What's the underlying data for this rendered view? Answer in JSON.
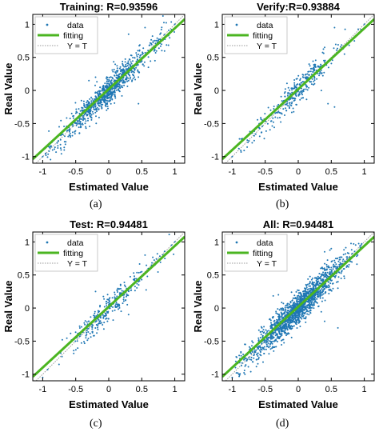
{
  "colors": {
    "data": "#1f77b4",
    "fitting": "#4bb521",
    "reference": "#999999",
    "frame": "#000000"
  },
  "legend": {
    "data": "data",
    "fitting": "fitting",
    "reference": "Y = T"
  },
  "panel_labels": [
    "(a)",
    "(b)",
    "(c)",
    "(d)"
  ],
  "chart_data": [
    {
      "type": "scatter",
      "title": "Training: R=0.93596",
      "xlabel": "Estimated Value",
      "ylabel": "Real Value",
      "xlim": [
        -1.15,
        1.15
      ],
      "ylim": [
        -1.1,
        1.15
      ],
      "xticks": [
        -1,
        -0.5,
        0,
        0.5,
        1
      ],
      "xtick_labels": [
        "-1",
        "-0.5",
        "0",
        "0.5",
        "1"
      ],
      "yticks": [
        -1,
        -0.5,
        0,
        0.5,
        1
      ],
      "ytick_labels": [
        "-1",
        "-0.5",
        "0",
        "0.5",
        "1"
      ],
      "legend_position": "top-left",
      "fit_line": {
        "slope": 0.92,
        "intercept": 0.02
      },
      "cloud": {
        "n": 900,
        "spread": 0.1,
        "core_sd": 0.28,
        "seed": 11
      },
      "points": [
        [
          -1.0,
          -1.0
        ],
        [
          -0.95,
          -0.98
        ],
        [
          -0.9,
          -0.8
        ],
        [
          -0.85,
          -0.9
        ],
        [
          -0.75,
          -0.55
        ],
        [
          -0.62,
          -0.6
        ],
        [
          -0.4,
          -0.5
        ],
        [
          -0.35,
          -0.55
        ],
        [
          0.3,
          0.85
        ],
        [
          0.55,
          0.95
        ],
        [
          0.6,
          0.35
        ],
        [
          0.7,
          0.45
        ],
        [
          0.8,
          0.7
        ],
        [
          0.95,
          0.92
        ],
        [
          1.0,
          1.0
        ],
        [
          0.9,
          0.85
        ],
        [
          -0.2,
          0.2
        ],
        [
          -0.3,
          0.15
        ],
        [
          0.45,
          -0.2
        ]
      ]
    },
    {
      "type": "scatter",
      "title": "Verify:R=0.93884",
      "xlabel": "Estimated Value",
      "ylabel": "Real Value",
      "xlim": [
        -1.15,
        1.15
      ],
      "ylim": [
        -1.1,
        1.15
      ],
      "xticks": [
        -1,
        -0.5,
        0,
        0.5,
        1
      ],
      "xtick_labels": [
        "-1",
        "-0.5",
        "0",
        "0.5",
        "1"
      ],
      "yticks": [
        -1,
        -0.5,
        0,
        0.5,
        1
      ],
      "ytick_labels": [
        "-1",
        "-0.5",
        "0",
        "0.5",
        "1"
      ],
      "legend_position": "top-left",
      "fit_line": {
        "slope": 0.92,
        "intercept": 0.02
      },
      "cloud": {
        "n": 320,
        "spread": 0.1,
        "core_sd": 0.28,
        "seed": 23
      },
      "points": [
        [
          -1.0,
          -1.0
        ],
        [
          -0.9,
          -0.88
        ],
        [
          -0.55,
          -0.5
        ],
        [
          0.4,
          0.65
        ],
        [
          0.55,
          0.95
        ],
        [
          0.7,
          0.55
        ],
        [
          0.85,
          0.75
        ],
        [
          0.95,
          0.92
        ],
        [
          1.0,
          1.0
        ],
        [
          0.35,
          0.0
        ],
        [
          0.45,
          -0.2
        ],
        [
          0.55,
          -0.25
        ]
      ]
    },
    {
      "type": "scatter",
      "title": "Test: R=0.94481",
      "xlabel": "Estimated Value",
      "ylabel": "Real Value",
      "xlim": [
        -1.15,
        1.15
      ],
      "ylim": [
        -1.1,
        1.15
      ],
      "xticks": [
        -1,
        -0.5,
        0,
        0.5,
        1
      ],
      "xtick_labels": [
        "-1",
        "-0.5",
        "0",
        "0.5",
        "1"
      ],
      "yticks": [
        -1,
        -0.5,
        0,
        0.5,
        1
      ],
      "ytick_labels": [
        "-1",
        "-0.5",
        "0",
        "0.5",
        "1"
      ],
      "legend_position": "top-left",
      "fit_line": {
        "slope": 0.92,
        "intercept": 0.02
      },
      "cloud": {
        "n": 300,
        "spread": 0.09,
        "core_sd": 0.27,
        "seed": 37
      },
      "points": [
        [
          -1.0,
          -1.05
        ],
        [
          -0.5,
          -0.45
        ],
        [
          -0.3,
          -0.2
        ],
        [
          0.5,
          0.55
        ],
        [
          0.55,
          0.8
        ],
        [
          0.7,
          0.65
        ],
        [
          0.85,
          0.75
        ],
        [
          0.95,
          0.95
        ],
        [
          1.0,
          1.0
        ],
        [
          -0.2,
          0.25
        ],
        [
          0.3,
          -0.1
        ]
      ]
    },
    {
      "type": "scatter",
      "title": "All: R=0.94481",
      "xlabel": "Estimated Value",
      "ylabel": "Real Value",
      "xlim": [
        -1.15,
        1.15
      ],
      "ylim": [
        -1.1,
        1.15
      ],
      "xticks": [
        -1,
        -0.5,
        0,
        0.5,
        1
      ],
      "xtick_labels": [
        "-1",
        "-0.5",
        "0",
        "0.5",
        "1"
      ],
      "yticks": [
        -1,
        -0.5,
        0,
        0.5,
        1
      ],
      "ytick_labels": [
        "-1",
        "-0.5",
        "0",
        "0.5",
        "1"
      ],
      "legend_position": "top-left",
      "fit_line": {
        "slope": 0.92,
        "intercept": 0.02
      },
      "cloud": {
        "n": 1600,
        "spread": 0.11,
        "core_sd": 0.3,
        "seed": 53
      },
      "points": [
        [
          -1.0,
          -1.05
        ],
        [
          -0.95,
          -0.9
        ],
        [
          -0.9,
          -1.0
        ],
        [
          -0.85,
          -0.75
        ],
        [
          -0.8,
          -0.55
        ],
        [
          -0.7,
          -0.5
        ],
        [
          -0.55,
          -0.3
        ],
        [
          0.4,
          0.85
        ],
        [
          0.5,
          0.9
        ],
        [
          0.6,
          0.3
        ],
        [
          0.7,
          0.45
        ],
        [
          0.8,
          0.75
        ],
        [
          0.9,
          0.8
        ],
        [
          0.95,
          0.95
        ],
        [
          1.0,
          1.15
        ],
        [
          1.05,
          1.0
        ],
        [
          -0.3,
          0.2
        ],
        [
          0.4,
          -0.2
        ],
        [
          0.6,
          -0.3
        ]
      ]
    }
  ]
}
